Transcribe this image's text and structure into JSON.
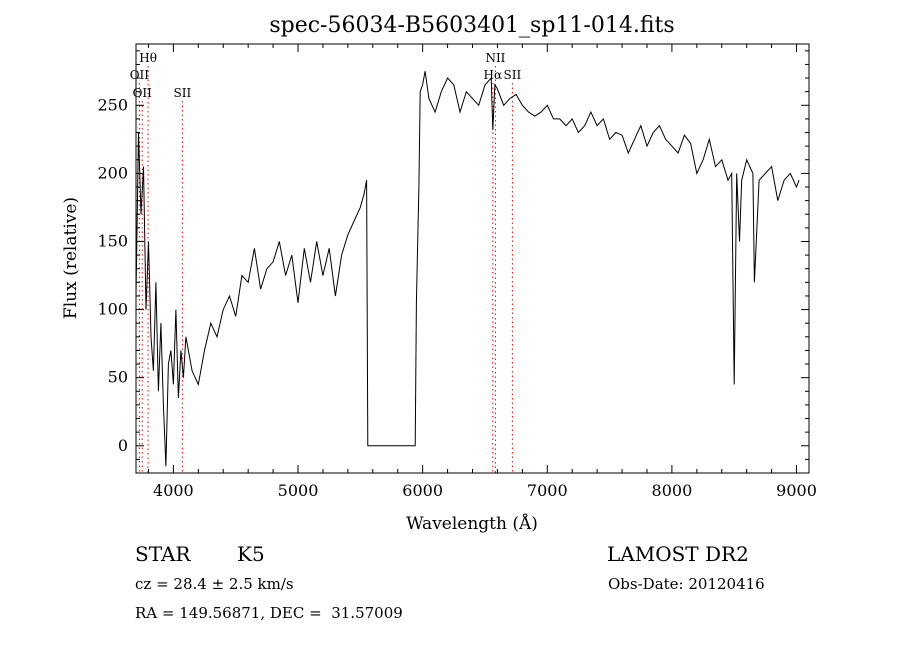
{
  "chart_data": {
    "type": "line",
    "title": "spec-56034-B5603401_sp11-014.fits",
    "xlabel": "Wavelength (Å)",
    "ylabel": "Flux (relative)",
    "xlim": [
      3700,
      9100
    ],
    "ylim": [
      -20,
      295
    ],
    "xticks": [
      4000,
      5000,
      6000,
      7000,
      8000,
      9000
    ],
    "yticks": [
      0,
      50,
      100,
      150,
      200,
      250
    ],
    "line_color": "#000000",
    "marker_color": "#ff0000",
    "grid": false,
    "series": [
      {
        "x": [
          3700,
          3720,
          3740,
          3760,
          3780,
          3800,
          3820,
          3840,
          3860,
          3880,
          3900,
          3920,
          3940,
          3960,
          3980,
          4000,
          4020,
          4040,
          4060,
          4080,
          4100,
          4150,
          4200,
          4250,
          4300,
          4350,
          4400,
          4450,
          4500,
          4550,
          4600,
          4650,
          4700,
          4750,
          4800,
          4850,
          4900,
          4950,
          5000,
          5050,
          5100,
          5150,
          5200,
          5250,
          5300,
          5350,
          5400,
          5450,
          5500,
          5530,
          5550,
          5560,
          5570,
          5600,
          5700,
          5800,
          5900,
          5940,
          5950,
          5960,
          5970,
          5980,
          6000,
          6020,
          6050,
          6100,
          6150,
          6200,
          6250,
          6300,
          6350,
          6400,
          6450,
          6500,
          6550,
          6563,
          6580,
          6600,
          6650,
          6700,
          6750,
          6800,
          6850,
          6900,
          6950,
          7000,
          7050,
          7100,
          7150,
          7200,
          7250,
          7300,
          7350,
          7400,
          7450,
          7500,
          7550,
          7600,
          7650,
          7700,
          7750,
          7800,
          7850,
          7900,
          7950,
          8000,
          8050,
          8100,
          8150,
          8200,
          8250,
          8300,
          8350,
          8400,
          8450,
          8480,
          8500,
          8520,
          8542,
          8560,
          8600,
          8650,
          8662,
          8700,
          8750,
          8800,
          8850,
          8900,
          8950,
          9000,
          9020
        ],
        "y": [
          110,
          230,
          170,
          205,
          100,
          150,
          80,
          55,
          120,
          40,
          90,
          30,
          -15,
          60,
          70,
          45,
          100,
          35,
          70,
          50,
          80,
          55,
          45,
          70,
          90,
          80,
          100,
          110,
          95,
          125,
          120,
          145,
          115,
          130,
          135,
          150,
          125,
          140,
          105,
          145,
          120,
          150,
          125,
          145,
          110,
          140,
          155,
          165,
          175,
          185,
          195,
          0,
          0,
          0,
          0,
          0,
          0,
          0,
          105,
          150,
          190,
          260,
          265,
          275,
          255,
          245,
          260,
          270,
          265,
          245,
          260,
          255,
          250,
          265,
          270,
          232,
          265,
          262,
          250,
          255,
          258,
          250,
          245,
          242,
          245,
          250,
          240,
          240,
          235,
          240,
          230,
          235,
          245,
          235,
          240,
          225,
          230,
          228,
          215,
          225,
          235,
          220,
          230,
          235,
          225,
          220,
          215,
          228,
          222,
          200,
          210,
          225,
          205,
          210,
          195,
          200,
          45,
          200,
          150,
          195,
          210,
          200,
          120,
          195,
          200,
          205,
          180,
          195,
          200,
          190,
          195
        ]
      }
    ],
    "line_markers": [
      {
        "label": "Hθ",
        "x": 3797,
        "row": 1
      },
      {
        "label": "OII",
        "x": 3727,
        "row": 2
      },
      {
        "label": "OII",
        "x": 3750,
        "row": 3
      },
      {
        "label": "SII",
        "x": 4072,
        "row": 3
      },
      {
        "label": "NII",
        "x": 6584,
        "row": 1
      },
      {
        "label": "Hα",
        "x": 6563,
        "row": 2
      },
      {
        "label": "SII",
        "x": 6720,
        "row": 2
      }
    ]
  },
  "info": {
    "object_class": "STAR",
    "subclass": "K5",
    "survey": "LAMOST DR2",
    "cz_line": "cz = 28.4 ± 2.5 km/s",
    "obs_date_line": "Obs-Date: 20120416",
    "radec_line": "RA = 149.56871, DEC =  31.57009"
  }
}
